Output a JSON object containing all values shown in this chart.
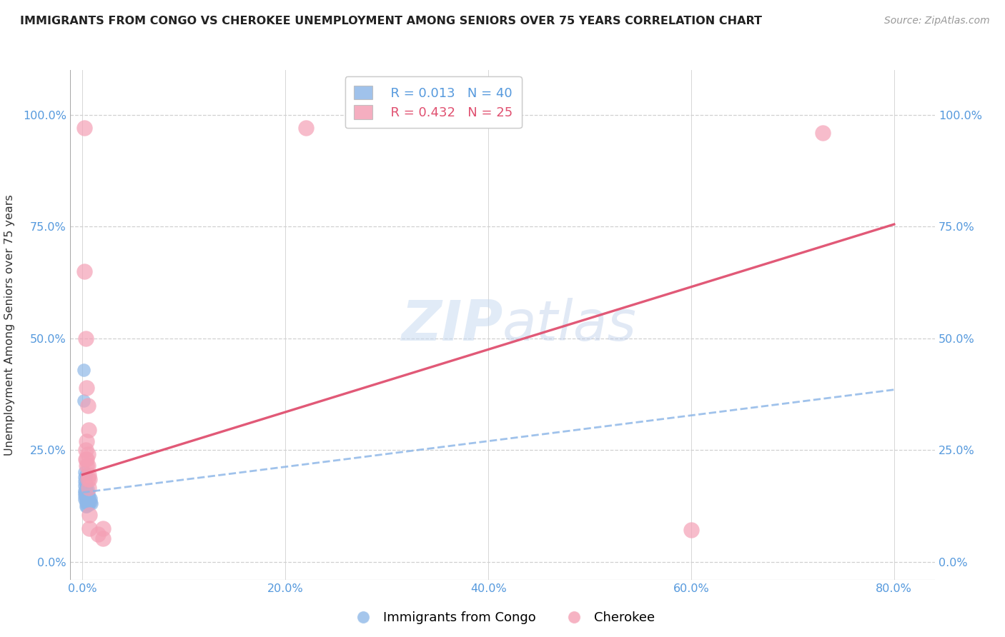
{
  "title": "IMMIGRANTS FROM CONGO VS CHEROKEE UNEMPLOYMENT AMONG SENIORS OVER 75 YEARS CORRELATION CHART",
  "source": "Source: ZipAtlas.com",
  "xlabel_ticks": [
    "0.0%",
    "20.0%",
    "40.0%",
    "60.0%",
    "80.0%"
  ],
  "xlabel_vals": [
    0.0,
    0.2,
    0.4,
    0.6,
    0.8
  ],
  "ylabel_ticks": [
    "0.0%",
    "25.0%",
    "50.0%",
    "75.0%",
    "100.0%"
  ],
  "ylabel_vals": [
    0.0,
    0.25,
    0.5,
    0.75,
    1.0
  ],
  "xlim": [
    -0.012,
    0.84
  ],
  "ylim": [
    -0.04,
    1.1
  ],
  "ylabel": "Unemployment Among Seniors over 75 years",
  "legend_blue_R": "R = 0.013",
  "legend_blue_N": "N = 40",
  "legend_pink_R": "R = 0.432",
  "legend_pink_N": "N = 25",
  "legend_blue_label": "Immigrants from Congo",
  "legend_pink_label": "Cherokee",
  "blue_color": "#8FB8E8",
  "pink_color": "#F4A0B5",
  "blue_line_color": "#8FB8E8",
  "pink_line_color": "#E05070",
  "blue_scatter": [
    [
      0.001,
      0.43
    ],
    [
      0.001,
      0.36
    ],
    [
      0.002,
      0.2
    ],
    [
      0.002,
      0.19
    ],
    [
      0.002,
      0.18
    ],
    [
      0.002,
      0.17
    ],
    [
      0.002,
      0.16
    ],
    [
      0.002,
      0.155
    ],
    [
      0.002,
      0.148
    ],
    [
      0.002,
      0.14
    ],
    [
      0.003,
      0.195
    ],
    [
      0.003,
      0.188
    ],
    [
      0.003,
      0.178
    ],
    [
      0.003,
      0.17
    ],
    [
      0.003,
      0.163
    ],
    [
      0.003,
      0.156
    ],
    [
      0.003,
      0.148
    ],
    [
      0.003,
      0.14
    ],
    [
      0.003,
      0.132
    ],
    [
      0.003,
      0.124
    ],
    [
      0.004,
      0.172
    ],
    [
      0.004,
      0.164
    ],
    [
      0.004,
      0.156
    ],
    [
      0.004,
      0.148
    ],
    [
      0.004,
      0.14
    ],
    [
      0.004,
      0.132
    ],
    [
      0.004,
      0.124
    ],
    [
      0.005,
      0.162
    ],
    [
      0.005,
      0.154
    ],
    [
      0.005,
      0.146
    ],
    [
      0.005,
      0.138
    ],
    [
      0.006,
      0.152
    ],
    [
      0.006,
      0.144
    ],
    [
      0.006,
      0.136
    ],
    [
      0.006,
      0.128
    ],
    [
      0.007,
      0.144
    ],
    [
      0.007,
      0.136
    ],
    [
      0.008,
      0.142
    ],
    [
      0.008,
      0.134
    ],
    [
      0.009,
      0.13
    ]
  ],
  "pink_scatter": [
    [
      0.002,
      0.97
    ],
    [
      0.002,
      0.65
    ],
    [
      0.003,
      0.5
    ],
    [
      0.003,
      0.25
    ],
    [
      0.003,
      0.23
    ],
    [
      0.004,
      0.39
    ],
    [
      0.004,
      0.27
    ],
    [
      0.004,
      0.23
    ],
    [
      0.004,
      0.215
    ],
    [
      0.005,
      0.35
    ],
    [
      0.005,
      0.24
    ],
    [
      0.005,
      0.215
    ],
    [
      0.005,
      0.185
    ],
    [
      0.006,
      0.295
    ],
    [
      0.006,
      0.195
    ],
    [
      0.006,
      0.165
    ],
    [
      0.007,
      0.185
    ],
    [
      0.007,
      0.105
    ],
    [
      0.007,
      0.075
    ],
    [
      0.015,
      0.062
    ],
    [
      0.02,
      0.075
    ],
    [
      0.02,
      0.052
    ],
    [
      0.6,
      0.072
    ],
    [
      0.73,
      0.96
    ],
    [
      0.22,
      0.97
    ]
  ],
  "blue_trend_x": [
    0.0,
    0.8
  ],
  "blue_trend_y": [
    0.155,
    0.385
  ],
  "pink_trend_x": [
    0.0,
    0.8
  ],
  "pink_trend_y": [
    0.195,
    0.755
  ]
}
